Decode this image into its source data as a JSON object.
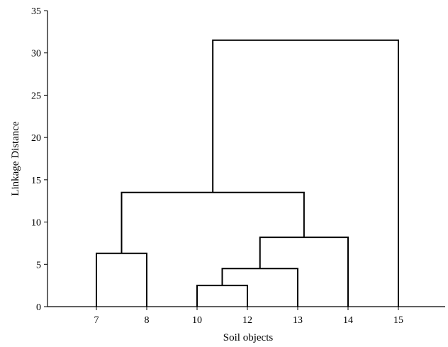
{
  "chart_data": {
    "type": "dendrogram",
    "xlabel": "Soil objects",
    "ylabel": "Linkage Distance",
    "ylim": [
      0,
      35
    ],
    "yticks": [
      0,
      5,
      10,
      15,
      20,
      25,
      30,
      35
    ],
    "leaves": [
      "7",
      "8",
      "10",
      "12",
      "13",
      "14",
      "15"
    ],
    "merges": [
      {
        "left": "10",
        "right": "12",
        "height": 2.5
      },
      {
        "left": "10+12",
        "right": "13",
        "height": 4.5
      },
      {
        "left": "7",
        "right": "8",
        "height": 6.3
      },
      {
        "left": "10+12+13",
        "right": "14",
        "height": 8.2
      },
      {
        "left": "7+8",
        "right": "10+12+13+14",
        "height": 13.5
      },
      {
        "left": "7+8+10+12+13+14",
        "right": "15",
        "height": 31.5
      }
    ],
    "grid": false,
    "legend": "none"
  }
}
